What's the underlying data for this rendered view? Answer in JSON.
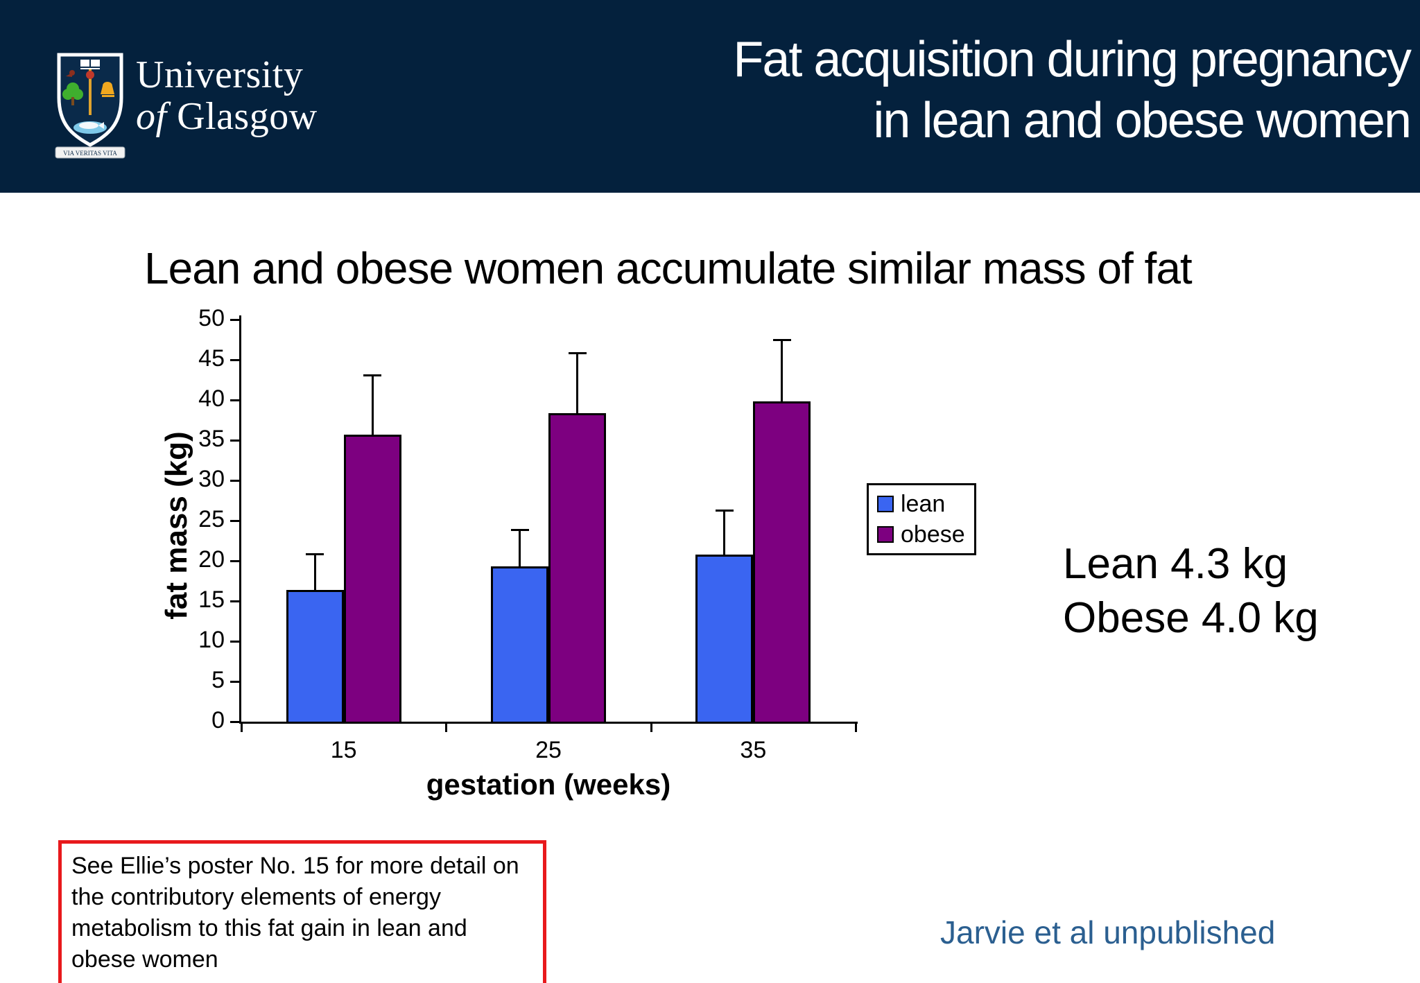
{
  "slide": {
    "header": {
      "title_line1": "Fat acquisition during pregnancy",
      "title_line2": "in lean and obese women",
      "logo": {
        "org_line1": "University",
        "org_line2_prefix": "of",
        "org_line2_name": "Glasgow",
        "motto": "VIA VERITAS VITA"
      }
    },
    "subtitle": "Lean and obese women accumulate similar mass of fat",
    "annotation": {
      "line1": "Lean 4.3 kg",
      "line2": "Obese 4.0 kg"
    },
    "callout_text": "See Ellie’s poster No. 15 for more detail on the contributory elements of energy metabolism to this fat gain in lean and obese women",
    "citation": "Jarvie et al unpublished",
    "colors": {
      "header_navy": "#04213d",
      "callout_border_red": "#e8191c",
      "citation_blue": "#2b5f90"
    }
  },
  "chart_data": {
    "type": "bar",
    "title": "",
    "categories": [
      "15",
      "25",
      "35"
    ],
    "xlabel": "gestation (weeks)",
    "ylabel": "fat mass (kg)",
    "ylim": [
      0,
      50
    ],
    "ytick_step": 5,
    "grid": false,
    "legend_position": "right",
    "error_bars": "upper only",
    "series": [
      {
        "name": "lean",
        "color": "#3a65f1",
        "values": [
          16.4,
          19.3,
          20.8
        ],
        "errors_up": [
          4.5,
          4.6,
          5.5
        ]
      },
      {
        "name": "obese",
        "color": "#7d0080",
        "values": [
          35.7,
          38.4,
          39.8
        ],
        "errors_up": [
          7.4,
          7.5,
          7.7
        ]
      }
    ]
  }
}
